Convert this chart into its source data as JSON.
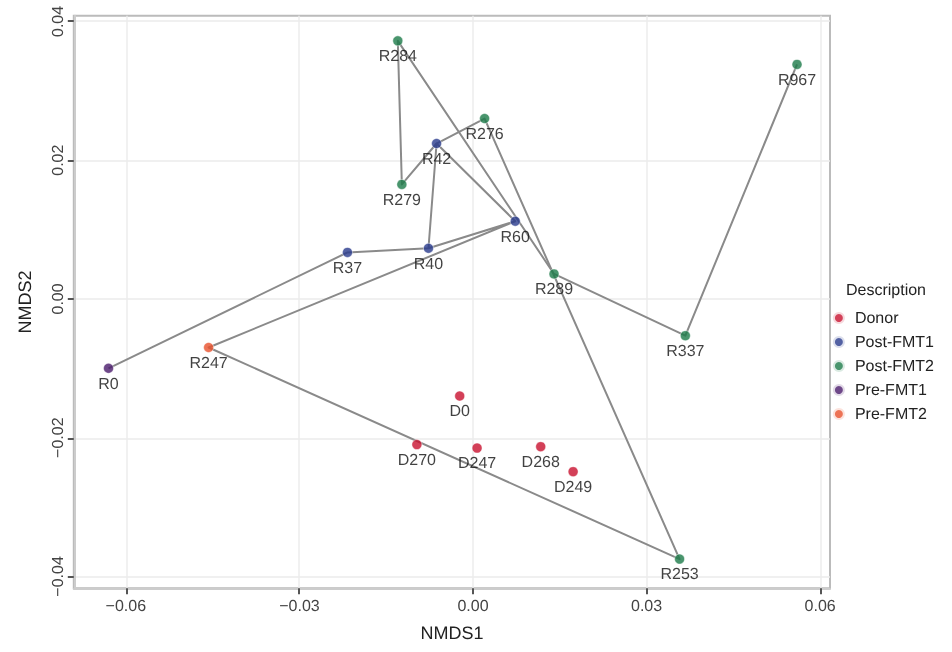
{
  "chart_data": {
    "type": "scatter",
    "xlabel": "NMDS1",
    "ylabel": "NMDS2",
    "legend_title": "Description",
    "legend": "right",
    "grid": true,
    "marker": "circle",
    "xlim": [
      -0.069,
      0.0617
    ],
    "ylim": [
      -0.0417,
      0.0408
    ],
    "xticks": [
      {
        "value": -0.06,
        "label": "−0.06"
      },
      {
        "value": -0.03,
        "label": "−0.03"
      },
      {
        "value": 0,
        "label": "0.00"
      },
      {
        "value": 0.03,
        "label": "0.03"
      },
      {
        "value": 0.06,
        "label": "0.06"
      }
    ],
    "yticks": [
      {
        "value": -0.04,
        "label": "−0.04"
      },
      {
        "value": -0.02,
        "label": "−0.02"
      },
      {
        "value": 0,
        "label": "0.00"
      },
      {
        "value": 0.02,
        "label": "0.02"
      },
      {
        "value": 0.04,
        "label": "0.04"
      }
    ],
    "series": [
      {
        "type": "line",
        "color": "#8a8a8a",
        "marker": "none",
        "x": [
          -0.063,
          -0.0217,
          -0.0077,
          0.0073,
          -0.0457,
          0.0357,
          0.002,
          -0.0063,
          -0.0077
        ],
        "values": [
          -0.01,
          0.0067,
          0.0073,
          0.0112,
          -0.007,
          -0.0375,
          0.026,
          0.0224,
          0.0073
        ]
      },
      {
        "type": "line",
        "color": "#8a8a8a",
        "marker": "none",
        "x": [
          0.0073,
          -0.0063,
          -0.0123,
          -0.013,
          0.014,
          0.0367,
          0.056
        ],
        "values": [
          0.0112,
          0.0224,
          0.0165,
          0.0372,
          0.0036,
          -0.0053,
          0.0338
        ]
      },
      {
        "name": "Donor",
        "color": "#c8102e",
        "x": [
          -0.0023,
          -0.0097,
          0.0007,
          0.0117,
          0.0173
        ],
        "values": [
          -0.014,
          -0.021,
          -0.0215,
          -0.0213,
          -0.0249
        ],
        "value_labels": [
          "D0",
          "D270",
          "D247",
          "D268",
          "D249"
        ]
      },
      {
        "name": "Post-FMT1",
        "color": "#283a8c",
        "x": [
          -0.0217,
          -0.0077,
          -0.0063,
          0.0073
        ],
        "values": [
          0.0067,
          0.0073,
          0.0224,
          0.0112
        ],
        "value_labels": [
          "R37",
          "R40",
          "R42",
          "R60"
        ]
      },
      {
        "name": "Post-FMT2",
        "color": "#1b7a48",
        "x": [
          -0.013,
          -0.0123,
          0.002,
          0.014,
          0.056,
          0.0367,
          0.0357
        ],
        "values": [
          0.0372,
          0.0165,
          0.026,
          0.0036,
          0.0338,
          -0.0053,
          -0.0375
        ],
        "value_labels": [
          "R284",
          "R279",
          "R276",
          "R289",
          "R967",
          "R337",
          "R253"
        ]
      },
      {
        "name": "Pre-FMT1",
        "color": "#4a1a6b",
        "x": [
          -0.063
        ],
        "values": [
          -0.01
        ],
        "value_labels": [
          "R0"
        ]
      },
      {
        "name": "Pre-FMT2",
        "color": "#e8502a",
        "x": [
          -0.0457
        ],
        "values": [
          -0.007
        ],
        "value_labels": [
          "R247"
        ]
      }
    ]
  }
}
